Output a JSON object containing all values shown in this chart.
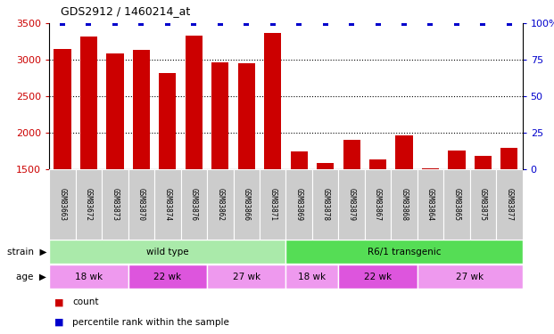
{
  "title": "GDS2912 / 1460214_at",
  "samples": [
    "GSM83663",
    "GSM83672",
    "GSM83873",
    "GSM83870",
    "GSM83874",
    "GSM83876",
    "GSM83862",
    "GSM83866",
    "GSM83871",
    "GSM83869",
    "GSM83878",
    "GSM83879",
    "GSM83867",
    "GSM83868",
    "GSM83864",
    "GSM83865",
    "GSM83875",
    "GSM83877"
  ],
  "counts": [
    3150,
    3320,
    3090,
    3140,
    2820,
    3330,
    2960,
    2950,
    3370,
    1750,
    1590,
    1900,
    1640,
    1960,
    1510,
    1760,
    1680,
    1790
  ],
  "percentile": [
    100,
    100,
    100,
    100,
    100,
    100,
    100,
    100,
    100,
    100,
    100,
    100,
    100,
    100,
    100,
    100,
    100,
    100
  ],
  "bar_color": "#cc0000",
  "dot_color": "#0000cc",
  "ymin": 1500,
  "ymax": 3500,
  "yticks": [
    1500,
    2000,
    2500,
    3000,
    3500
  ],
  "right_yticks": [
    0,
    25,
    50,
    75,
    100
  ],
  "strain_labels": [
    {
      "label": "wild type",
      "start": 0,
      "end": 9,
      "color": "#aaeaaa"
    },
    {
      "label": "R6/1 transgenic",
      "start": 9,
      "end": 18,
      "color": "#55dd55"
    }
  ],
  "age_groups": [
    {
      "label": "18 wk",
      "start": 0,
      "end": 3,
      "color": "#ee99ee"
    },
    {
      "label": "22 wk",
      "start": 3,
      "end": 6,
      "color": "#dd55dd"
    },
    {
      "label": "27 wk",
      "start": 6,
      "end": 9,
      "color": "#ee99ee"
    },
    {
      "label": "18 wk",
      "start": 9,
      "end": 11,
      "color": "#ee99ee"
    },
    {
      "label": "22 wk",
      "start": 11,
      "end": 14,
      "color": "#dd55dd"
    },
    {
      "label": "27 wk",
      "start": 14,
      "end": 18,
      "color": "#ee99ee"
    }
  ],
  "legend_count_color": "#cc0000",
  "legend_pct_color": "#0000cc",
  "left_tick_color": "#cc0000",
  "right_tick_color": "#0000cc",
  "grid_color": "#000000",
  "tick_label_bg": "#cccccc"
}
